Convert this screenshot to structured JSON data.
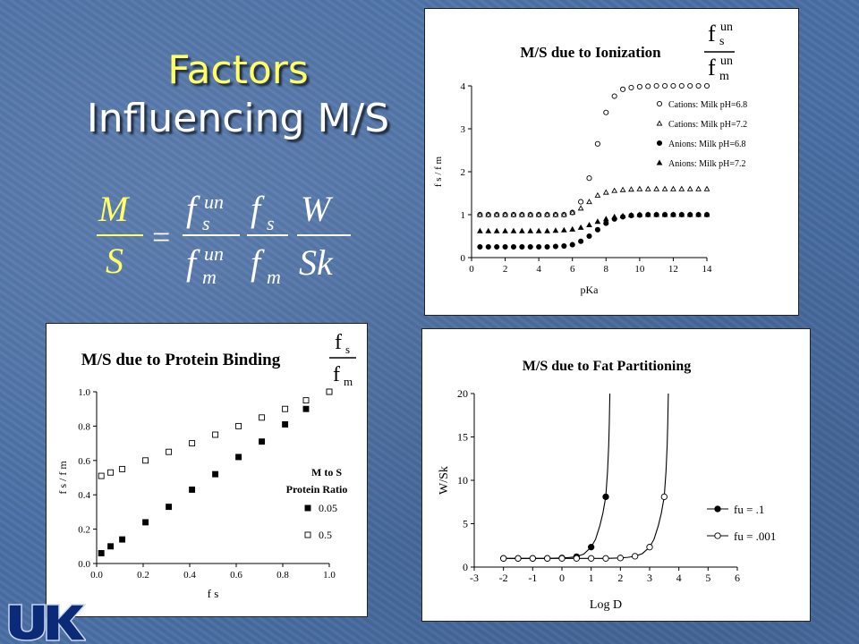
{
  "slide": {
    "title_line1": "Factors",
    "title_line2": "Influencing M/S",
    "logo_text": "UK"
  },
  "formula": {
    "lhs_num": "M",
    "lhs_den": "S",
    "equals": "=",
    "f": "f",
    "un": "un",
    "s": "s",
    "m": "m",
    "w": "W",
    "sk": "Sk"
  },
  "chart_data": [
    {
      "type": "scatter",
      "title": "M/S due to Ionization",
      "inset_label": {
        "num": "f",
        "num_sup": "un",
        "num_sub": "s",
        "den": "f",
        "den_sup": "un",
        "den_sub": "m"
      },
      "xlabel": "pKa",
      "ylabel": "f s / f m",
      "xlim": [
        0,
        14
      ],
      "ylim": [
        0,
        4
      ],
      "xticks": [
        "0",
        "2",
        "4",
        "6",
        "8",
        "10",
        "12",
        "14"
      ],
      "yticks": [
        "0",
        "1",
        "2",
        "3",
        "4"
      ],
      "legend_position": "right",
      "x": [
        0.5,
        1,
        1.5,
        2,
        2.5,
        3,
        3.5,
        4,
        4.5,
        5,
        5.5,
        6,
        6.5,
        7,
        7.5,
        8,
        8.5,
        9,
        9.5,
        10,
        10.5,
        11,
        11.5,
        12,
        12.5,
        13,
        13.5,
        14
      ],
      "series": [
        {
          "name": "Cations: Milk pH=6.8",
          "marker": "circle-open",
          "values": [
            1,
            1,
            1,
            1,
            1,
            1,
            1,
            1,
            1,
            1,
            1,
            1.05,
            1.3,
            1.85,
            2.65,
            3.38,
            3.76,
            3.92,
            3.96,
            3.98,
            3.99,
            4,
            4,
            4,
            4,
            4,
            4,
            4
          ]
        },
        {
          "name": "Cations: Milk pH=7.2",
          "marker": "triangle-open",
          "values": [
            1,
            1,
            1,
            1,
            1,
            1,
            1,
            1,
            1,
            1,
            1,
            1.05,
            1.15,
            1.3,
            1.45,
            1.52,
            1.56,
            1.58,
            1.59,
            1.6,
            1.6,
            1.6,
            1.6,
            1.6,
            1.6,
            1.6,
            1.6,
            1.6
          ]
        },
        {
          "name": "Anions: Milk pH=6.8",
          "marker": "circle-filled",
          "values": [
            0.25,
            0.25,
            0.25,
            0.25,
            0.25,
            0.25,
            0.25,
            0.25,
            0.25,
            0.26,
            0.27,
            0.3,
            0.38,
            0.5,
            0.65,
            0.8,
            0.9,
            0.95,
            0.98,
            0.99,
            1,
            1,
            1,
            1,
            1,
            1,
            1,
            1
          ]
        },
        {
          "name": "Anions: Milk pH=7.2",
          "marker": "triangle-filled",
          "values": [
            0.62,
            0.62,
            0.62,
            0.62,
            0.62,
            0.62,
            0.62,
            0.62,
            0.62,
            0.63,
            0.64,
            0.66,
            0.7,
            0.76,
            0.84,
            0.9,
            0.95,
            0.97,
            0.99,
            1,
            1,
            1,
            1,
            1,
            1,
            1,
            1,
            1
          ]
        }
      ]
    },
    {
      "type": "scatter",
      "title": "M/S due to Protein Binding",
      "inset_label": {
        "num": "f",
        "num_sub": "s",
        "den": "f",
        "den_sub": "m"
      },
      "xlabel": "f s",
      "ylabel": "f s / f m",
      "xlim": [
        0,
        1
      ],
      "ylim": [
        0,
        1
      ],
      "xticks": [
        "0.0",
        "0.2",
        "0.4",
        "0.6",
        "0.8",
        "1.0"
      ],
      "yticks": [
        "0.0",
        "0.2",
        "0.4",
        "0.6",
        "0.8",
        "1.0"
      ],
      "legend_title_line1": "M to S",
      "legend_title_line2": "Protein Ratio",
      "series": [
        {
          "name": "0.05",
          "marker": "square-filled",
          "x": [
            0.02,
            0.06,
            0.11,
            0.21,
            0.31,
            0.41,
            0.51,
            0.61,
            0.71,
            0.81,
            0.9,
            1.0
          ],
          "values": [
            0.06,
            0.1,
            0.14,
            0.24,
            0.33,
            0.43,
            0.52,
            0.62,
            0.71,
            0.81,
            0.9,
            1.0
          ]
        },
        {
          "name": "0.5",
          "marker": "square-open",
          "x": [
            0.02,
            0.06,
            0.11,
            0.21,
            0.31,
            0.41,
            0.51,
            0.61,
            0.71,
            0.81,
            0.9,
            1.0
          ],
          "values": [
            0.51,
            0.53,
            0.55,
            0.6,
            0.65,
            0.7,
            0.75,
            0.8,
            0.85,
            0.9,
            0.95,
            1.0
          ]
        }
      ]
    },
    {
      "type": "line",
      "title": "M/S due to Fat Partitioning",
      "xlabel": "Log D",
      "ylabel": "W/Sk",
      "xlim": [
        -3,
        6
      ],
      "ylim": [
        0,
        20
      ],
      "xticks": [
        "-3",
        "-2",
        "-1",
        "0",
        "1",
        "2",
        "3",
        "4",
        "5",
        "6"
      ],
      "yticks": [
        "0",
        "5",
        "10",
        "15",
        "20"
      ],
      "legend_position": "right",
      "series": [
        {
          "name": "fu = .1",
          "marker": "circle-filled",
          "x": [
            -2,
            -1.5,
            -1,
            -0.5,
            0,
            0.5,
            1,
            1.5
          ],
          "values": [
            1,
            1,
            1,
            1,
            1.05,
            1.2,
            2.3,
            8.1
          ],
          "curve_x": [
            -2,
            -1.5,
            -1,
            -0.5,
            0,
            0.25,
            0.5,
            0.75,
            1,
            1.15,
            1.3,
            1.4,
            1.5,
            1.56,
            1.6,
            1.62,
            1.64
          ],
          "curve_values": [
            1,
            1,
            1,
            1,
            1.05,
            1.1,
            1.2,
            1.5,
            2.3,
            3.2,
            4.8,
            6.2,
            8.1,
            11,
            14,
            16.5,
            20
          ]
        },
        {
          "name": "fu = .001",
          "marker": "circle-open",
          "x": [
            -2,
            -1.5,
            -1,
            -0.5,
            0,
            0.5,
            1,
            1.5,
            2,
            2.5,
            3,
            3.5
          ],
          "values": [
            1,
            1,
            1,
            1,
            1,
            1,
            1,
            1,
            1.05,
            1.25,
            2.3,
            8.1
          ],
          "curve_x": [
            -2,
            -1,
            0,
            1,
            1.5,
            2,
            2.25,
            2.5,
            2.75,
            3,
            3.15,
            3.3,
            3.4,
            3.5,
            3.56,
            3.6,
            3.62,
            3.64
          ],
          "curve_values": [
            1,
            1,
            1,
            1,
            1,
            1.05,
            1.12,
            1.25,
            1.55,
            2.3,
            3.2,
            4.8,
            6.2,
            8.1,
            11,
            14,
            16.5,
            20
          ]
        }
      ]
    }
  ]
}
